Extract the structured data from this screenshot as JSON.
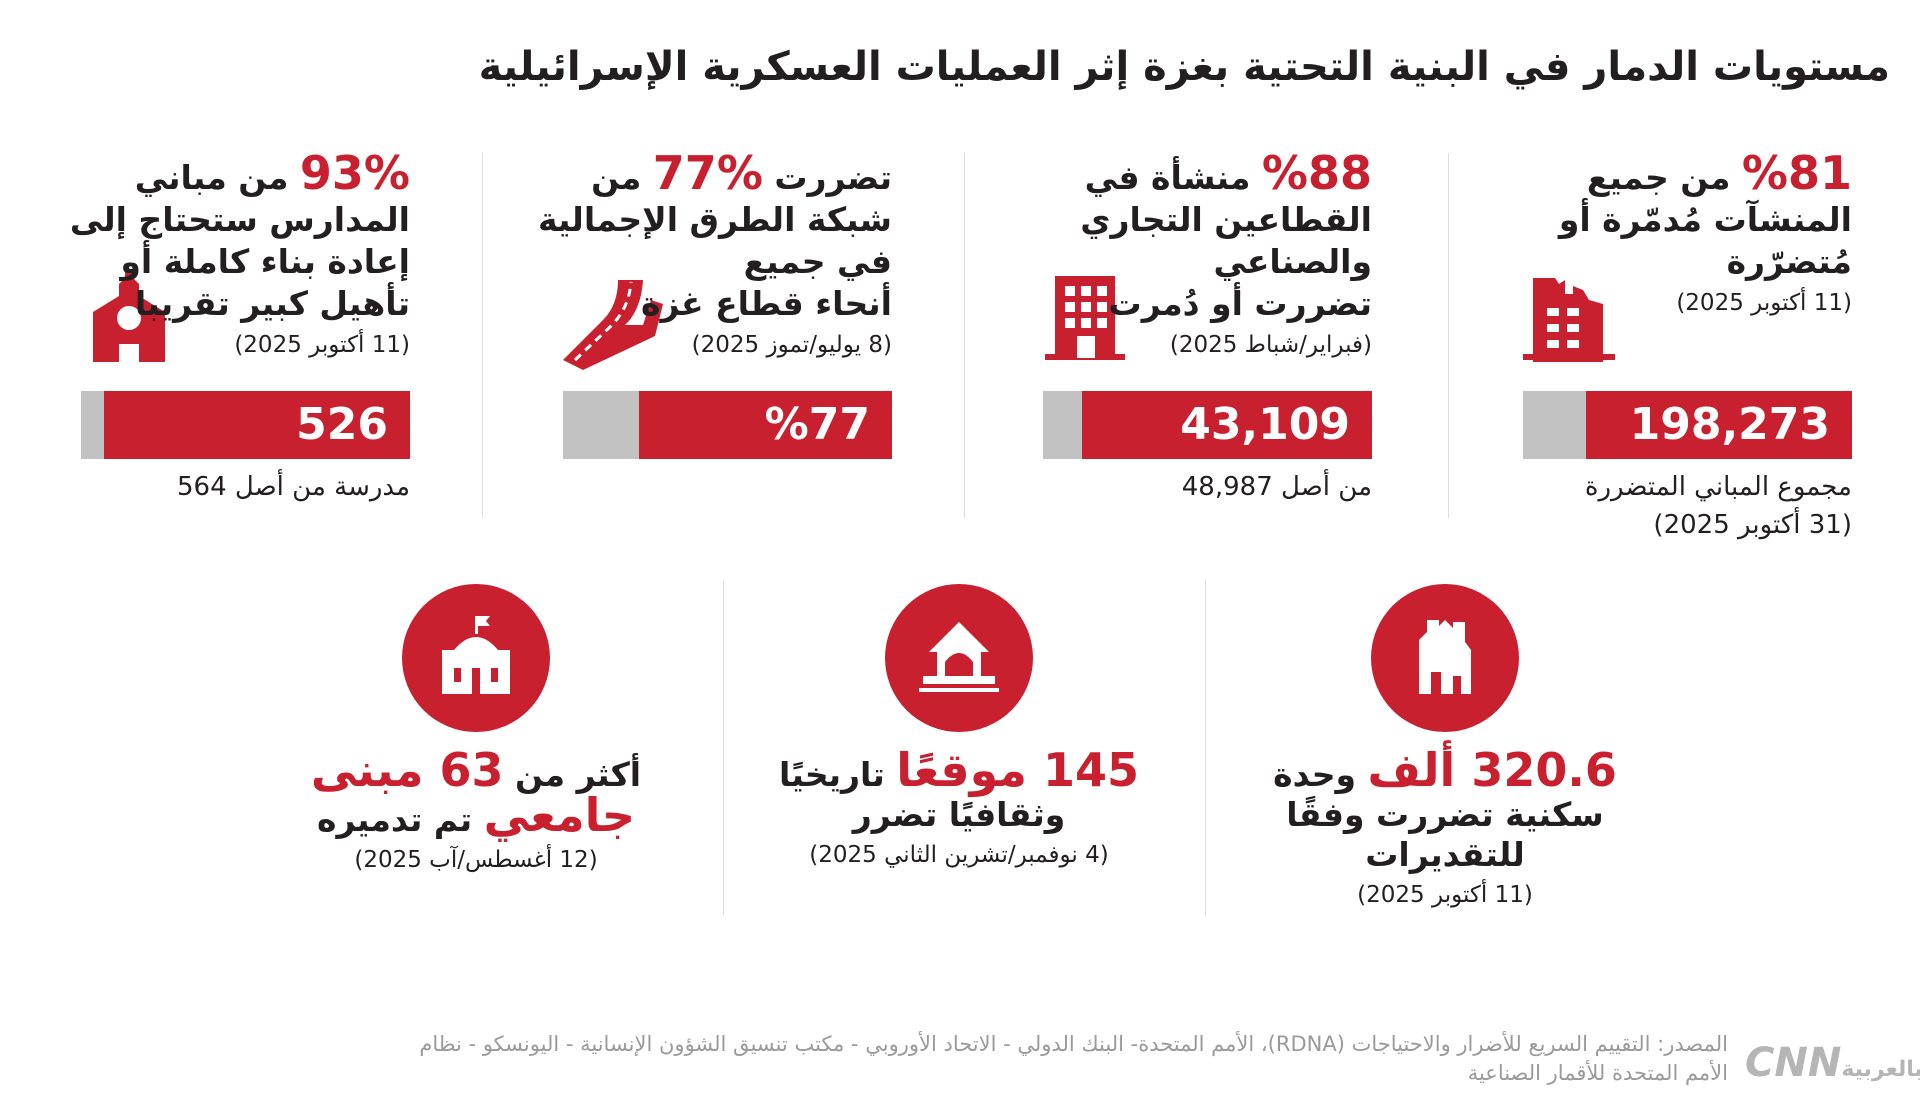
{
  "title": "مستويات الدمار في البنية التحتية بغزة إثر العمليات العسكرية الإسرائيلية",
  "stats": [
    {
      "lines": [
        [
          {
            "text": "%81",
            "color": "#c8202f"
          },
          {
            "text": " من جميع"
          }
        ],
        [
          {
            "text": "المنشآت مُدمّرة أو"
          }
        ],
        [
          {
            "text": "مُتضرّرة"
          }
        ]
      ],
      "date": "(11 أكتوبر 2025)",
      "percent": 81,
      "bar_label": "198,273",
      "notes": [
        "مجموع المباني المتضررة",
        "(31 أكتوبر 2025)"
      ]
    },
    {
      "lines": [
        [
          {
            "text": "%88",
            "color": "#c8202f"
          },
          {
            "text": " منشأة في"
          }
        ],
        [
          {
            "text": "القطاعين التجاري"
          }
        ],
        [
          {
            "text": "والصناعي"
          }
        ],
        [
          {
            "text": "تضررت أو دُمرت"
          }
        ]
      ],
      "date": "(فبراير/شباط 2025)",
      "percent": 88,
      "bar_label": "43,109",
      "notes": [
        "من أصل 48,987"
      ]
    },
    {
      "lines": [
        [
          {
            "text": "تضررت "
          },
          {
            "text": "%77",
            "color": "#c8202f"
          },
          {
            "text": " من"
          }
        ],
        [
          {
            "text": "شبكة الطرق الإجمالية"
          }
        ],
        [
          {
            "text": "في جميع"
          }
        ],
        [
          {
            "text": "أنحاء قطاع غزة"
          }
        ]
      ],
      "date": "(8 يوليو/تموز 2025)",
      "percent": 77,
      "bar_label": "%77",
      "notes": []
    },
    {
      "lines": [
        [
          {
            "text": "93%",
            "color": "#c8202f"
          },
          {
            "text": " من مباني"
          }
        ],
        [
          {
            "text": "المدارس ستحتاج إلى"
          }
        ],
        [
          {
            "text": "إعادة بناء كاملة أو"
          }
        ],
        [
          {
            "text": "تأهيل كبير تقريبا"
          }
        ]
      ],
      "date": "(11 أكتوبر 2025)",
      "percent": 93,
      "bar_label": "526",
      "notes": [
        "مدرسة من أصل 564"
      ]
    }
  ],
  "highlights": [
    {
      "lines": [
        [
          {
            "text": "320.6",
            "color": "#c8202f"
          },
          {
            "text": " ألف",
            "color": "#c8202f"
          },
          {
            "text": " وحدة"
          }
        ],
        [
          {
            "text": "سكنية تضررت وفقًا"
          }
        ],
        [
          {
            "text": "للتقديرات"
          }
        ]
      ],
      "date": "(11 أكتوبر 2025)"
    },
    {
      "lines": [
        [
          {
            "text": "145",
            "color": "#c8202f"
          },
          {
            "text": " موقعًا",
            "color": "#c8202f"
          },
          {
            "text": " تاريخيًا"
          }
        ],
        [
          {
            "text": "وثقافيًا تضرر"
          }
        ]
      ],
      "date": "(4 نوفمبر/تشرين الثاني 2025)"
    },
    {
      "lines": [
        [
          {
            "text": "أكثر من "
          },
          {
            "text": "63",
            "color": "#c8202f"
          },
          {
            "text": " مبنى",
            "color": "#c8202f"
          }
        ],
        [
          {
            "text": "جامعي",
            "color": "#c8202f"
          },
          {
            "text": " تم تدميره"
          }
        ]
      ],
      "date": "(12 أغسطس/آب 2025)"
    }
  ],
  "source": [
    "المصدر: التقييم السريع للأضرار والاحتياجات (RDNA)، الأمم المتحدة- البنك الدولي - الاتحاد الأوروبي - مكتب تنسيق الشؤون الإنسانية - اليونسكو - نظام",
    "الأمم المتحدة للأقمار الصناعية"
  ],
  "logo": {
    "brand": "CNN",
    "suffix": "بالعربية"
  }
}
